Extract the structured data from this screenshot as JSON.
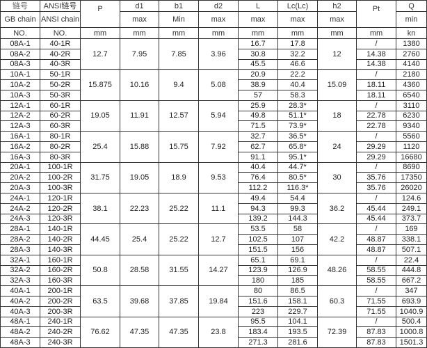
{
  "header": {
    "row1": {
      "gb": "链号",
      "ansi": "ANSI链号",
      "p": "P",
      "d1": "d1",
      "b1": "b1",
      "d2": "d2",
      "l": "L",
      "lc": "Lc(Lc)",
      "h2": "h2",
      "pt": "Pt",
      "q": "Q"
    },
    "row2": {
      "gb": "GB chain",
      "ansi": "ANSI chain",
      "d1": "max",
      "b1": "Min",
      "d2": "max",
      "l": "max",
      "lc": "max",
      "h2": "max",
      "q": "min"
    },
    "row3": {
      "gb": "NO.",
      "ansi": "NO.",
      "p": "mm",
      "d1": "mm",
      "b1": "mm",
      "d2": "mm",
      "l": "mm",
      "lc": "mm",
      "h2": "mm",
      "pt": "mm",
      "q": "kn"
    }
  },
  "groups": [
    {
      "p": "12.7",
      "d1": "7.95",
      "b1": "7.85",
      "d2": "3.96",
      "h2": "12",
      "rows": [
        {
          "gb": "08A-1",
          "ansi": "40-1R",
          "l": "16.7",
          "lc": "17.8",
          "pt": "/",
          "q": "1380"
        },
        {
          "gb": "08A-2",
          "ansi": "40-2R",
          "l": "30.8",
          "lc": "32.2",
          "pt": "14.38",
          "q": "2760"
        },
        {
          "gb": "08A-3",
          "ansi": "40-3R",
          "l": "45.5",
          "lc": "46.6",
          "pt": "14.38",
          "q": "4140"
        }
      ]
    },
    {
      "p": "15.875",
      "d1": "10.16",
      "b1": "9.4",
      "d2": "5.08",
      "h2": "15.09",
      "rows": [
        {
          "gb": "10A-1",
          "ansi": "50-1R",
          "l": "20.9",
          "lc": "22.2",
          "pt": "/",
          "q": "2180"
        },
        {
          "gb": "10A-2",
          "ansi": "50-2R",
          "l": "38.9",
          "lc": "40.4",
          "pt": "18.11",
          "q": "4360"
        },
        {
          "gb": "10A-3",
          "ansi": "50-3R",
          "l": "57",
          "lc": "58.3",
          "pt": "18.11",
          "q": "6540"
        }
      ]
    },
    {
      "p": "19.05",
      "d1": "11.91",
      "b1": "12.57",
      "d2": "5.94",
      "h2": "18",
      "rows": [
        {
          "gb": "12A-1",
          "ansi": "60-1R",
          "l": "25.9",
          "lc": "28.3*",
          "pt": "/",
          "q": "3110"
        },
        {
          "gb": "12A-2",
          "ansi": "60-2R",
          "l": "49.8",
          "lc": "51.1*",
          "pt": "22.78",
          "q": "6230"
        },
        {
          "gb": "12A-3",
          "ansi": "60-3R",
          "l": "71.5",
          "lc": "73.9*",
          "pt": "22.78",
          "q": "9340"
        }
      ]
    },
    {
      "p": "25.4",
      "d1": "15.88",
      "b1": "15.75",
      "d2": "7.92",
      "h2": "24",
      "rows": [
        {
          "gb": "16A-1",
          "ansi": "80-1R",
          "l": "32.7",
          "lc": "36.5*",
          "pt": "/",
          "q": "5560"
        },
        {
          "gb": "16A-2",
          "ansi": "80-2R",
          "l": "62.7",
          "lc": "65.8*",
          "pt": "29.29",
          "q": "1120"
        },
        {
          "gb": "16A-3",
          "ansi": "80-3R",
          "l": "91.1",
          "lc": "95.1*",
          "pt": "29.29",
          "q": "16680"
        }
      ]
    },
    {
      "p": "31.75",
      "d1": "19.05",
      "b1": "18.9",
      "d2": "9.53",
      "h2": "30",
      "rows": [
        {
          "gb": "20A-1",
          "ansi": "100-1R",
          "l": "40.4",
          "lc": "44.7*",
          "pt": "/",
          "q": "8690"
        },
        {
          "gb": "20A-2",
          "ansi": "100-2R",
          "l": "76.4",
          "lc": "80.5*",
          "pt": "35.76",
          "q": "17350"
        },
        {
          "gb": "20A-3",
          "ansi": "100-3R",
          "l": "112.2",
          "lc": "116.3*",
          "pt": "35.76",
          "q": "26020"
        }
      ]
    },
    {
      "p": "38.1",
      "d1": "22.23",
      "b1": "25.22",
      "d2": "11.1",
      "h2": "36.2",
      "rows": [
        {
          "gb": "24A-1",
          "ansi": "120-1R",
          "l": "49.4",
          "lc": "54.4",
          "pt": "/",
          "q": "124.6"
        },
        {
          "gb": "24A-2",
          "ansi": "120-2R",
          "l": "94.3",
          "lc": "99.3",
          "pt": "45.44",
          "q": "249.1"
        },
        {
          "gb": "24A-3",
          "ansi": "120-3R",
          "l": "139.2",
          "lc": "144.3",
          "pt": "45.44",
          "q": "373.7"
        }
      ]
    },
    {
      "p": "44.45",
      "d1": "25.4",
      "b1": "25.22",
      "d2": "12.7",
      "h2": "42.2",
      "rows": [
        {
          "gb": "28A-1",
          "ansi": "140-1R",
          "l": "53.5",
          "lc": "58",
          "pt": "/",
          "q": "169"
        },
        {
          "gb": "28A-2",
          "ansi": "140-2R",
          "l": "102.5",
          "lc": "107",
          "pt": "48.87",
          "q": "338.1"
        },
        {
          "gb": "28A-3",
          "ansi": "140-3R",
          "l": "151.5",
          "lc": "156",
          "pt": "48.87",
          "q": "507.1"
        }
      ]
    },
    {
      "p": "50.8",
      "d1": "28.58",
      "b1": "31.55",
      "d2": "14.27",
      "h2": "48.26",
      "rows": [
        {
          "gb": "32A-1",
          "ansi": "160-1R",
          "l": "65.1",
          "lc": "69.1",
          "pt": "/",
          "q": "22.4"
        },
        {
          "gb": "32A-2",
          "ansi": "160-2R",
          "l": "123.9",
          "lc": "126.9",
          "pt": "58.55",
          "q": "444.8"
        },
        {
          "gb": "32A-3",
          "ansi": "160-3R",
          "l": "180",
          "lc": "185",
          "pt": "58.55",
          "q": "667.2"
        }
      ]
    },
    {
      "p": "63.5",
      "d1": "39.68",
      "b1": "37.85",
      "d2": "19.84",
      "h2": "60.3",
      "rows": [
        {
          "gb": "40A-1",
          "ansi": "200-1R",
          "l": "80",
          "lc": "86.5",
          "pt": "/",
          "q": "347"
        },
        {
          "gb": "40A-2",
          "ansi": "200-2R",
          "l": "151.6",
          "lc": "158.1",
          "pt": "71.55",
          "q": "693.9"
        },
        {
          "gb": "40A-3",
          "ansi": "200-3R",
          "l": "223",
          "lc": "229.7",
          "pt": "71.55",
          "q": "1040.9"
        }
      ]
    },
    {
      "p": "76.62",
      "d1": "47.35",
      "b1": "47.35",
      "d2": "23.8",
      "h2": "72.39",
      "rows": [
        {
          "gb": "48A-1",
          "ansi": "240-1R",
          "l": "95.5",
          "lc": "104.1",
          "pt": "/",
          "q": "500.4"
        },
        {
          "gb": "48A-2",
          "ansi": "240-2R",
          "l": "183.4",
          "lc": "193.5",
          "pt": "87.83",
          "q": "1000.8"
        },
        {
          "gb": "48A-3",
          "ansi": "240-3R",
          "l": "271.3",
          "lc": "281.6",
          "pt": "87.83",
          "q": "1501.3"
        }
      ]
    }
  ]
}
